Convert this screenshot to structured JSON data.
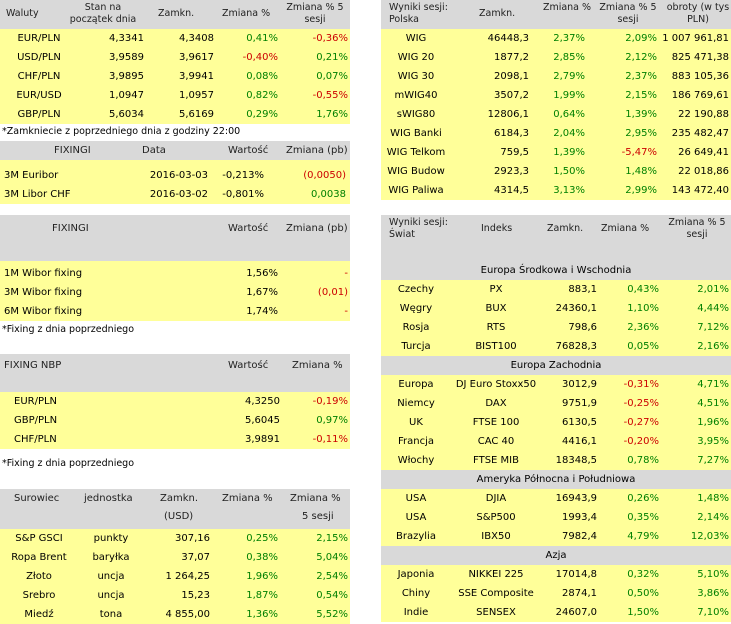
{
  "fx": {
    "headers": [
      "Waluty",
      "Stan na początek dnia",
      "Zamkn.",
      "Zmiana %",
      "Zmiana % 5 sesji"
    ],
    "rows": [
      {
        "name": "EUR/PLN",
        "open": "4,3341",
        "close": "4,3408",
        "chg": "0,41%",
        "chg5": "-0,36%"
      },
      {
        "name": "USD/PLN",
        "open": "3,9589",
        "close": "3,9617",
        "chg": "-0,40%",
        "chg5": "0,21%"
      },
      {
        "name": "CHF/PLN",
        "open": "3,9895",
        "close": "3,9941",
        "chg": "0,08%",
        "chg5": "0,07%"
      },
      {
        "name": "EUR/USD",
        "open": "1,0947",
        "close": "1,0957",
        "chg": "0,82%",
        "chg5": "-0,55%"
      },
      {
        "name": "GBP/PLN",
        "open": "5,6034",
        "close": "5,6169",
        "chg": "0,29%",
        "chg5": "1,76%"
      }
    ],
    "note": "*Zamkniecie z poprzedniego dnia z godziny 22:00"
  },
  "euribor": {
    "headers": [
      "FIXINGI",
      "Data",
      "Wartość",
      "Zmiana (pb)"
    ],
    "rows": [
      {
        "name": "3M Euribor",
        "date": "2016-03-03",
        "value": "-0,213%",
        "chg": "(0,0050)"
      },
      {
        "name": "3M Libor CHF",
        "date": "2016-03-02",
        "value": "-0,801%",
        "chg": "0,0038"
      }
    ]
  },
  "wibor": {
    "headers": [
      "FIXINGI",
      "Wartość",
      "Zmiana (pb)"
    ],
    "rows": [
      {
        "name": "1M Wibor fixing",
        "value": "1,56%",
        "chg": "-"
      },
      {
        "name": "3M Wibor fixing",
        "value": "1,67%",
        "chg": "(0,01)"
      },
      {
        "name": "6M Wibor fixing",
        "value": "1,74%",
        "chg": "-"
      }
    ],
    "note": "*Fixing z dnia poprzedniego"
  },
  "nbp": {
    "headers": [
      "FIXING NBP",
      "Wartość",
      "Zmiana %"
    ],
    "rows": [
      {
        "name": "EUR/PLN",
        "value": "4,3250",
        "chg": "-0,19%"
      },
      {
        "name": "GBP/PLN",
        "value": "5,6045",
        "chg": "0,97%"
      },
      {
        "name": "CHF/PLN",
        "value": "3,9891",
        "chg": "-0,11%"
      }
    ],
    "note": "*Fixing z dnia poprzedniego"
  },
  "commodities": {
    "headers": [
      "Surowiec",
      "jednostka",
      "Zamkn.",
      "Zmiana %",
      "Zmiana %"
    ],
    "subheaders": [
      "(USD)",
      "5 sesji"
    ],
    "rows": [
      {
        "name": "S&P GSCI",
        "unit": "punkty",
        "close": "307,16",
        "chg": "0,25%",
        "chg5": "2,15%"
      },
      {
        "name": "Ropa Brent",
        "unit": "baryłka",
        "close": "37,07",
        "chg": "0,38%",
        "chg5": "5,04%"
      },
      {
        "name": "Złoto",
        "unit": "uncja",
        "close": "1 264,25",
        "chg": "1,96%",
        "chg5": "2,54%"
      },
      {
        "name": "Srebro",
        "unit": "uncja",
        "close": "15,23",
        "chg": "1,87%",
        "chg5": "0,54%"
      },
      {
        "name": "Miedź",
        "unit": "tona",
        "close": "4 855,00",
        "chg": "1,36%",
        "chg5": "5,52%"
      }
    ]
  },
  "poland": {
    "headers": [
      "Wyniki sesji: Polska",
      "Zamkn.",
      "Zmiana %",
      "Zmiana % 5 sesji",
      "obroty (w tys PLN)"
    ],
    "rows": [
      {
        "name": "WIG",
        "close": "46448,3",
        "chg": "2,37%",
        "chg5": "2,09%",
        "turnover": "1 007 961,81"
      },
      {
        "name": "WIG 20",
        "close": "1877,2",
        "chg": "2,85%",
        "chg5": "2,12%",
        "turnover": "825 471,38"
      },
      {
        "name": "WIG 30",
        "close": "2098,1",
        "chg": "2,79%",
        "chg5": "2,37%",
        "turnover": "883 105,36"
      },
      {
        "name": "mWIG40",
        "close": "3507,2",
        "chg": "1,99%",
        "chg5": "2,15%",
        "turnover": "186 769,61"
      },
      {
        "name": "sWIG80",
        "close": "12806,1",
        "chg": "0,64%",
        "chg5": "1,39%",
        "turnover": "22 190,88"
      },
      {
        "name": "WIG Banki",
        "close": "6184,3",
        "chg": "2,04%",
        "chg5": "2,95%",
        "turnover": "235 482,47"
      },
      {
        "name": "WIG Telkom",
        "close": "759,5",
        "chg": "1,39%",
        "chg5": "-5,47%",
        "turnover": "26 649,41"
      },
      {
        "name": "WIG Budow",
        "close": "2923,3",
        "chg": "1,50%",
        "chg5": "1,48%",
        "turnover": "22 018,86"
      },
      {
        "name": "WIG Paliwa",
        "close": "4314,5",
        "chg": "3,13%",
        "chg5": "2,99%",
        "turnover": "143 472,40"
      }
    ]
  },
  "world": {
    "headers": [
      "Wyniki sesji: Świat",
      "Indeks",
      "Zamkn.",
      "Zmiana %",
      "Zmiana % 5 sesji"
    ],
    "groups": [
      {
        "title": "Europa Środkowa i Wschodnia",
        "rows": [
          {
            "country": "Czechy",
            "index": "PX",
            "close": "883,1",
            "chg": "0,43%",
            "chg5": "2,01%"
          },
          {
            "country": "Węgry",
            "index": "BUX",
            "close": "24360,1",
            "chg": "1,10%",
            "chg5": "4,44%"
          },
          {
            "country": "Rosja",
            "index": "RTS",
            "close": "798,6",
            "chg": "2,36%",
            "chg5": "7,12%"
          },
          {
            "country": "Turcja",
            "index": "BIST100",
            "close": "76828,3",
            "chg": "0,05%",
            "chg5": "2,16%"
          }
        ]
      },
      {
        "title": "Europa Zachodnia",
        "rows": [
          {
            "country": "Europa",
            "index": "DJ Euro Stoxx50",
            "close": "3012,9",
            "chg": "-0,31%",
            "chg5": "4,71%"
          },
          {
            "country": "Niemcy",
            "index": "DAX",
            "close": "9751,9",
            "chg": "-0,25%",
            "chg5": "4,51%"
          },
          {
            "country": "UK",
            "index": "FTSE 100",
            "close": "6130,5",
            "chg": "-0,27%",
            "chg5": "1,96%"
          },
          {
            "country": "Francja",
            "index": "CAC 40",
            "close": "4416,1",
            "chg": "-0,20%",
            "chg5": "3,95%"
          },
          {
            "country": "Włochy",
            "index": "FTSE MIB",
            "close": "18348,5",
            "chg": "0,78%",
            "chg5": "7,27%"
          }
        ]
      },
      {
        "title": "Ameryka Północna i Południowa",
        "rows": [
          {
            "country": "USA",
            "index": "DJIA",
            "close": "16943,9",
            "chg": "0,26%",
            "chg5": "1,48%"
          },
          {
            "country": "USA",
            "index": "S&P500",
            "close": "1993,4",
            "chg": "0,35%",
            "chg5": "2,14%"
          },
          {
            "country": "Brazylia",
            "index": "IBX50",
            "close": "7982,4",
            "chg": "4,79%",
            "chg5": "12,03%"
          }
        ]
      },
      {
        "title": "Azja",
        "rows": [
          {
            "country": "Japonia",
            "index": "NIKKEI 225",
            "close": "17014,8",
            "chg": "0,32%",
            "chg5": "5,10%"
          },
          {
            "country": "Chiny",
            "index": "SSE Composite",
            "close": "2874,1",
            "chg": "0,50%",
            "chg5": "3,86%"
          },
          {
            "country": "Indie",
            "index": "SENSEX",
            "close": "24607,0",
            "chg": "1,50%",
            "chg5": "7,10%"
          }
        ]
      }
    ]
  },
  "colors": {
    "positive": "#008000",
    "negative": "#cc0000",
    "row_bg": "#ffff99",
    "header_bg": "#d9d9d9"
  }
}
